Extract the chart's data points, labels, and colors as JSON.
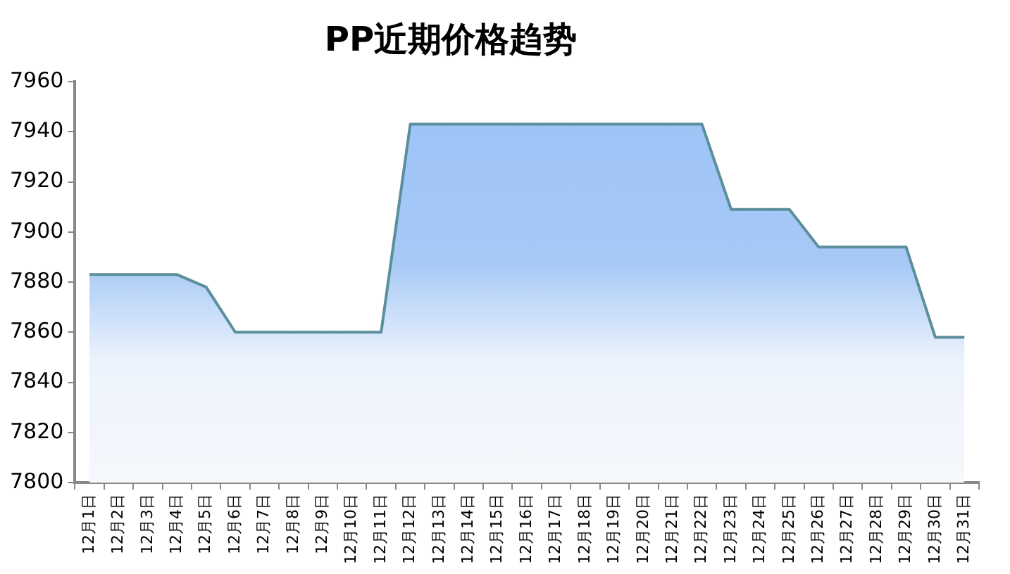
{
  "chart_data": {
    "type": "area",
    "title": "PP近期价格趋势",
    "categories": [
      "12月1日",
      "12月2日",
      "12月3日",
      "12月4日",
      "12月5日",
      "12月6日",
      "12月7日",
      "12月8日",
      "12月9日",
      "12月10日",
      "12月11日",
      "12月12日",
      "12月13日",
      "12月14日",
      "12月15日",
      "12月16日",
      "12月17日",
      "12月18日",
      "12月19日",
      "12月20日",
      "12月21日",
      "12月22日",
      "12月23日",
      "12月24日",
      "12月25日",
      "12月26日",
      "12月27日",
      "12月28日",
      "12月29日",
      "12月30日",
      "12月31日"
    ],
    "series": [
      {
        "color": "#5b8f9b",
        "values": [
          7883,
          7883,
          7883,
          7883,
          7878,
          7860,
          7860,
          7860,
          7860,
          7860,
          7860,
          7943,
          7943,
          7943,
          7943,
          7943,
          7943,
          7943,
          7943,
          7943,
          7943,
          7943,
          7909,
          7909,
          7909,
          7894,
          7894,
          7894,
          7894,
          7858,
          7858
        ]
      }
    ],
    "ylim": [
      7800,
      7960
    ],
    "yticks": [
      7800,
      7820,
      7840,
      7860,
      7880,
      7900,
      7920,
      7940,
      7960
    ],
    "grid": false,
    "legend": false,
    "marker": "none"
  }
}
